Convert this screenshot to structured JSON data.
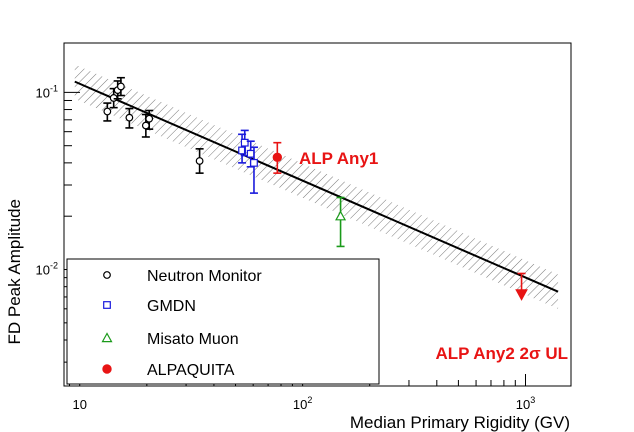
{
  "chart_data": {
    "type": "scatter",
    "xlabel": "Median Primary Rigidity (GV)",
    "ylabel": "FD Peak Amplitude",
    "xscale": "log",
    "yscale": "log",
    "xlim": [
      8.5,
      1600
    ],
    "ylim": [
      0.0022,
      0.19
    ],
    "x_tick_labels": [
      {
        "value": 10,
        "base": "10",
        "exp": ""
      },
      {
        "value": 100,
        "base": "10",
        "exp": "2"
      },
      {
        "value": 1000,
        "base": "10",
        "exp": "3"
      }
    ],
    "y_tick_labels": [
      {
        "value": 0.01,
        "base": "10",
        "exp": "-2"
      },
      {
        "value": 0.1,
        "base": "10",
        "exp": "-1"
      }
    ],
    "fit": {
      "x": [
        9.5,
        1400
      ],
      "y": [
        0.115,
        0.0075
      ],
      "band_factor_low": 0.8,
      "band_factor_high": 1.25
    },
    "series": [
      {
        "name": "Neutron Monitor",
        "marker": "open-circle",
        "color": "#000000",
        "points": [
          {
            "x": 13.3,
            "y": 0.078,
            "lo": 0.069,
            "hi": 0.087
          },
          {
            "x": 14.2,
            "y": 0.093,
            "lo": 0.082,
            "hi": 0.105
          },
          {
            "x": 14.8,
            "y": 0.103,
            "lo": 0.092,
            "hi": 0.116
          },
          {
            "x": 15.3,
            "y": 0.108,
            "lo": 0.096,
            "hi": 0.121
          },
          {
            "x": 16.7,
            "y": 0.072,
            "lo": 0.063,
            "hi": 0.081
          },
          {
            "x": 19.8,
            "y": 0.065,
            "lo": 0.056,
            "hi": 0.075
          },
          {
            "x": 20.5,
            "y": 0.071,
            "lo": 0.062,
            "hi": 0.079
          },
          {
            "x": 34.5,
            "y": 0.041,
            "lo": 0.035,
            "hi": 0.048
          }
        ]
      },
      {
        "name": "GMDN",
        "marker": "open-square",
        "color": "#1a1adc",
        "points": [
          {
            "x": 53.5,
            "y": 0.047,
            "lo": 0.04,
            "hi": 0.058
          },
          {
            "x": 55.0,
            "y": 0.052,
            "lo": 0.044,
            "hi": 0.061
          },
          {
            "x": 58.5,
            "y": 0.045,
            "lo": 0.038,
            "hi": 0.053
          },
          {
            "x": 60.5,
            "y": 0.04,
            "lo": 0.027,
            "hi": 0.049
          }
        ]
      },
      {
        "name": "Misato Muon",
        "marker": "open-triangle",
        "color": "#1a9a1a",
        "points": [
          {
            "x": 148,
            "y": 0.02,
            "lo": 0.0135,
            "hi": 0.0255
          }
        ]
      },
      {
        "name": "ALPAQUITA",
        "marker": "filled-circle",
        "color": "#e81414",
        "points": [
          {
            "x": 77,
            "y": 0.043,
            "lo": 0.035,
            "hi": 0.052
          }
        ]
      }
    ],
    "upper_limit": {
      "x": 960,
      "y": 0.0072,
      "top": 0.0095,
      "color": "#e81414"
    },
    "annotations": [
      {
        "text": "ALP Any1",
        "color": "#e81414",
        "x": 100,
        "y": 0.043
      },
      {
        "text": "ALP Any2 2σ UL",
        "color": "#e81414",
        "x": 100,
        "y": 0.0037
      }
    ],
    "legend": {
      "placement": "bottom-left",
      "entries": [
        "Neutron Monitor",
        "GMDN",
        "Misato Muon",
        "ALPAQUITA"
      ]
    }
  }
}
